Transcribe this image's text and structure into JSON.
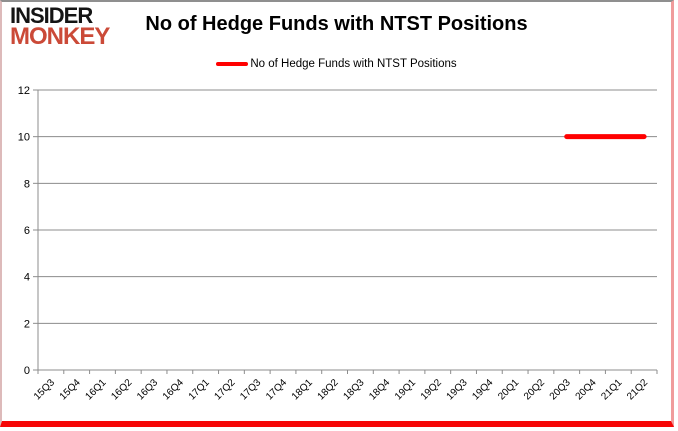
{
  "logo": {
    "line1": "INSIDER",
    "line2": "MONKEY",
    "color1": "#141414",
    "color2": "#cb4a38"
  },
  "header": {
    "title": "No of Hedge Funds with NTST Positions"
  },
  "legend": {
    "label": "No of Hedge Funds with NTST Positions",
    "line_color": "#ff0000",
    "position": "top-center"
  },
  "chart_data": {
    "type": "line",
    "title": "No of Hedge Funds with NTST Positions",
    "xlabel": "",
    "ylabel": "",
    "ylim": [
      0,
      12
    ],
    "ytick_step": 2,
    "grid": true,
    "grid_color": "#8c8c8c",
    "axis_color": "#8c8c8c",
    "label_color": "#000000",
    "categories": [
      "15Q3",
      "15Q4",
      "16Q1",
      "16Q2",
      "16Q3",
      "16Q4",
      "17Q1",
      "17Q2",
      "17Q3",
      "17Q4",
      "18Q1",
      "18Q2",
      "18Q3",
      "18Q4",
      "19Q1",
      "19Q2",
      "19Q3",
      "19Q4",
      "20Q1",
      "20Q2",
      "20Q3",
      "20Q4",
      "21Q1",
      "21Q2"
    ],
    "series": [
      {
        "name": "No of Hedge Funds with NTST Positions",
        "color": "#ff0000",
        "values": [
          null,
          null,
          null,
          null,
          null,
          null,
          null,
          null,
          null,
          null,
          null,
          null,
          null,
          null,
          null,
          null,
          null,
          null,
          null,
          null,
          10,
          10,
          10,
          10
        ]
      }
    ]
  }
}
